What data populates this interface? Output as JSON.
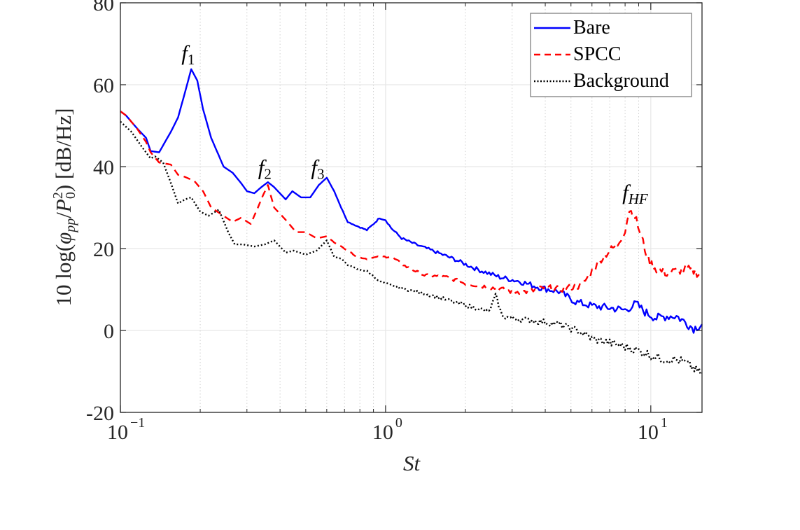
{
  "chart_data": {
    "type": "line",
    "title": "",
    "xlabel": "St",
    "ylabel": "10 log(φ_pp / P_0^2) [dB/Hz]",
    "xscale": "log",
    "xlim": [
      0.1,
      15.6
    ],
    "ylim": [
      -20,
      80
    ],
    "yticks": [
      -20,
      0,
      20,
      40,
      60,
      80
    ],
    "ytick_labels": [
      "-20",
      "0",
      "20",
      "40",
      "60",
      "80"
    ],
    "xticks": [
      0.1,
      1,
      10
    ],
    "xtick_labels": [
      {
        "base": "10",
        "exp": "−1"
      },
      {
        "base": "10",
        "exp": "0"
      },
      {
        "base": "10",
        "exp": "1"
      }
    ],
    "grid": true,
    "minor_grid": true,
    "legend": {
      "position": "top-right",
      "entries": [
        {
          "label": "Bare",
          "color": "#0000ff",
          "style": "solid"
        },
        {
          "label": "SPCC",
          "color": "#ff0000",
          "style": "dashed"
        },
        {
          "label": "Background",
          "color": "#000000",
          "style": "dotted"
        }
      ]
    },
    "annotations": [
      {
        "base": "f",
        "sub": "1",
        "x": 0.185,
        "y": 66
      },
      {
        "base": "f",
        "sub": "2",
        "x": 0.36,
        "y": 38
      },
      {
        "base": "f",
        "sub": "3",
        "x": 0.57,
        "y": 38
      },
      {
        "base": "f",
        "sub": "HF",
        "x": 8.5,
        "y": 32
      }
    ],
    "series": [
      {
        "name": "Bare",
        "color": "#0000ff",
        "style": "solid",
        "x": [
          0.1,
          0.105,
          0.115,
          0.125,
          0.13,
          0.14,
          0.155,
          0.165,
          0.175,
          0.185,
          0.195,
          0.205,
          0.22,
          0.245,
          0.265,
          0.285,
          0.3,
          0.32,
          0.34,
          0.36,
          0.38,
          0.42,
          0.445,
          0.48,
          0.52,
          0.56,
          0.6,
          0.64,
          0.68,
          0.72,
          0.78,
          0.85,
          0.9,
          0.95,
          1.0,
          1.05,
          1.15,
          1.3,
          1.5,
          1.8,
          2.2,
          2.7,
          3.2,
          3.8,
          4.5,
          5.2,
          6.0,
          7.0,
          8.0,
          8.8,
          9.5,
          10.5,
          11.5,
          12.5,
          13.5,
          14.5,
          15.6
        ],
        "y": [
          53.5,
          52.5,
          49.5,
          47,
          43.8,
          43.5,
          48.5,
          52,
          58,
          63.8,
          61,
          54,
          47,
          40,
          38.5,
          36,
          34,
          33.5,
          35,
          36.2,
          35,
          32,
          34,
          32.5,
          32.5,
          35.5,
          37.3,
          34,
          30,
          26.5,
          25.5,
          24.5,
          26,
          27.5,
          27,
          25,
          22.5,
          21,
          19.5,
          17.5,
          15,
          13,
          12,
          10.5,
          9.5,
          7,
          6,
          5.5,
          5,
          6.5,
          4.5,
          3,
          3.5,
          3.5,
          2,
          0.5,
          1.5
        ]
      },
      {
        "name": "SPCC",
        "color": "#ff0000",
        "style": "dashed",
        "x": [
          0.1,
          0.105,
          0.115,
          0.125,
          0.13,
          0.14,
          0.155,
          0.165,
          0.175,
          0.19,
          0.205,
          0.22,
          0.245,
          0.265,
          0.285,
          0.31,
          0.33,
          0.345,
          0.36,
          0.38,
          0.42,
          0.46,
          0.5,
          0.55,
          0.6,
          0.64,
          0.68,
          0.72,
          0.78,
          0.85,
          0.95,
          1.05,
          1.2,
          1.4,
          1.7,
          2.0,
          2.5,
          3.0,
          3.5,
          4.0,
          4.5,
          5.0,
          5.5,
          6.0,
          6.5,
          7.0,
          7.5,
          8.0,
          8.3,
          8.7,
          9.2,
          9.8,
          10.5,
          11.5,
          12.5,
          13.5,
          14.5,
          15.6
        ],
        "y": [
          53.5,
          52.5,
          49.5,
          46,
          43.5,
          41,
          40.5,
          38,
          37.5,
          36.5,
          34,
          30,
          28,
          26.5,
          27.5,
          26,
          30,
          33,
          35.5,
          30,
          27,
          24,
          24,
          22.5,
          23,
          21.5,
          20.5,
          19.5,
          18,
          17.5,
          18,
          18,
          15.5,
          13.5,
          13,
          11.5,
          10.5,
          9.5,
          9.5,
          10.5,
          10,
          10.5,
          11,
          14.5,
          17.5,
          19.5,
          21,
          24.5,
          29.5,
          28,
          23,
          17,
          15,
          14,
          14.5,
          15,
          14.5,
          13.5
        ]
      },
      {
        "name": "Background",
        "color": "#000000",
        "style": "dotted",
        "x": [
          0.1,
          0.11,
          0.12,
          0.13,
          0.135,
          0.145,
          0.155,
          0.165,
          0.175,
          0.185,
          0.2,
          0.215,
          0.235,
          0.255,
          0.27,
          0.29,
          0.32,
          0.35,
          0.38,
          0.42,
          0.45,
          0.5,
          0.55,
          0.6,
          0.64,
          0.68,
          0.72,
          0.78,
          0.85,
          0.95,
          1.05,
          1.2,
          1.4,
          1.6,
          1.9,
          2.2,
          2.45,
          2.6,
          2.75,
          3.0,
          3.5,
          4.0,
          4.5,
          5.0,
          5.5,
          6.0,
          7.0,
          8.0,
          9.0,
          10.0,
          11.0,
          12.0,
          13.0,
          14.0,
          15.0,
          15.6
        ],
        "y": [
          51,
          48.5,
          45,
          42,
          42.5,
          41,
          36,
          31,
          32,
          32.5,
          29,
          28,
          29.5,
          24,
          21,
          21,
          20.5,
          21,
          22,
          19,
          19.5,
          18.5,
          19.5,
          22,
          18,
          17.5,
          16,
          15,
          14.5,
          12,
          11,
          10,
          9,
          8,
          6.5,
          5.5,
          4.5,
          8.5,
          3.5,
          3,
          2.5,
          2,
          1.5,
          0.5,
          -0.5,
          -2,
          -3,
          -4,
          -5,
          -6,
          -7,
          -7,
          -7.5,
          -8.5,
          -10,
          -10.5
        ]
      }
    ]
  }
}
